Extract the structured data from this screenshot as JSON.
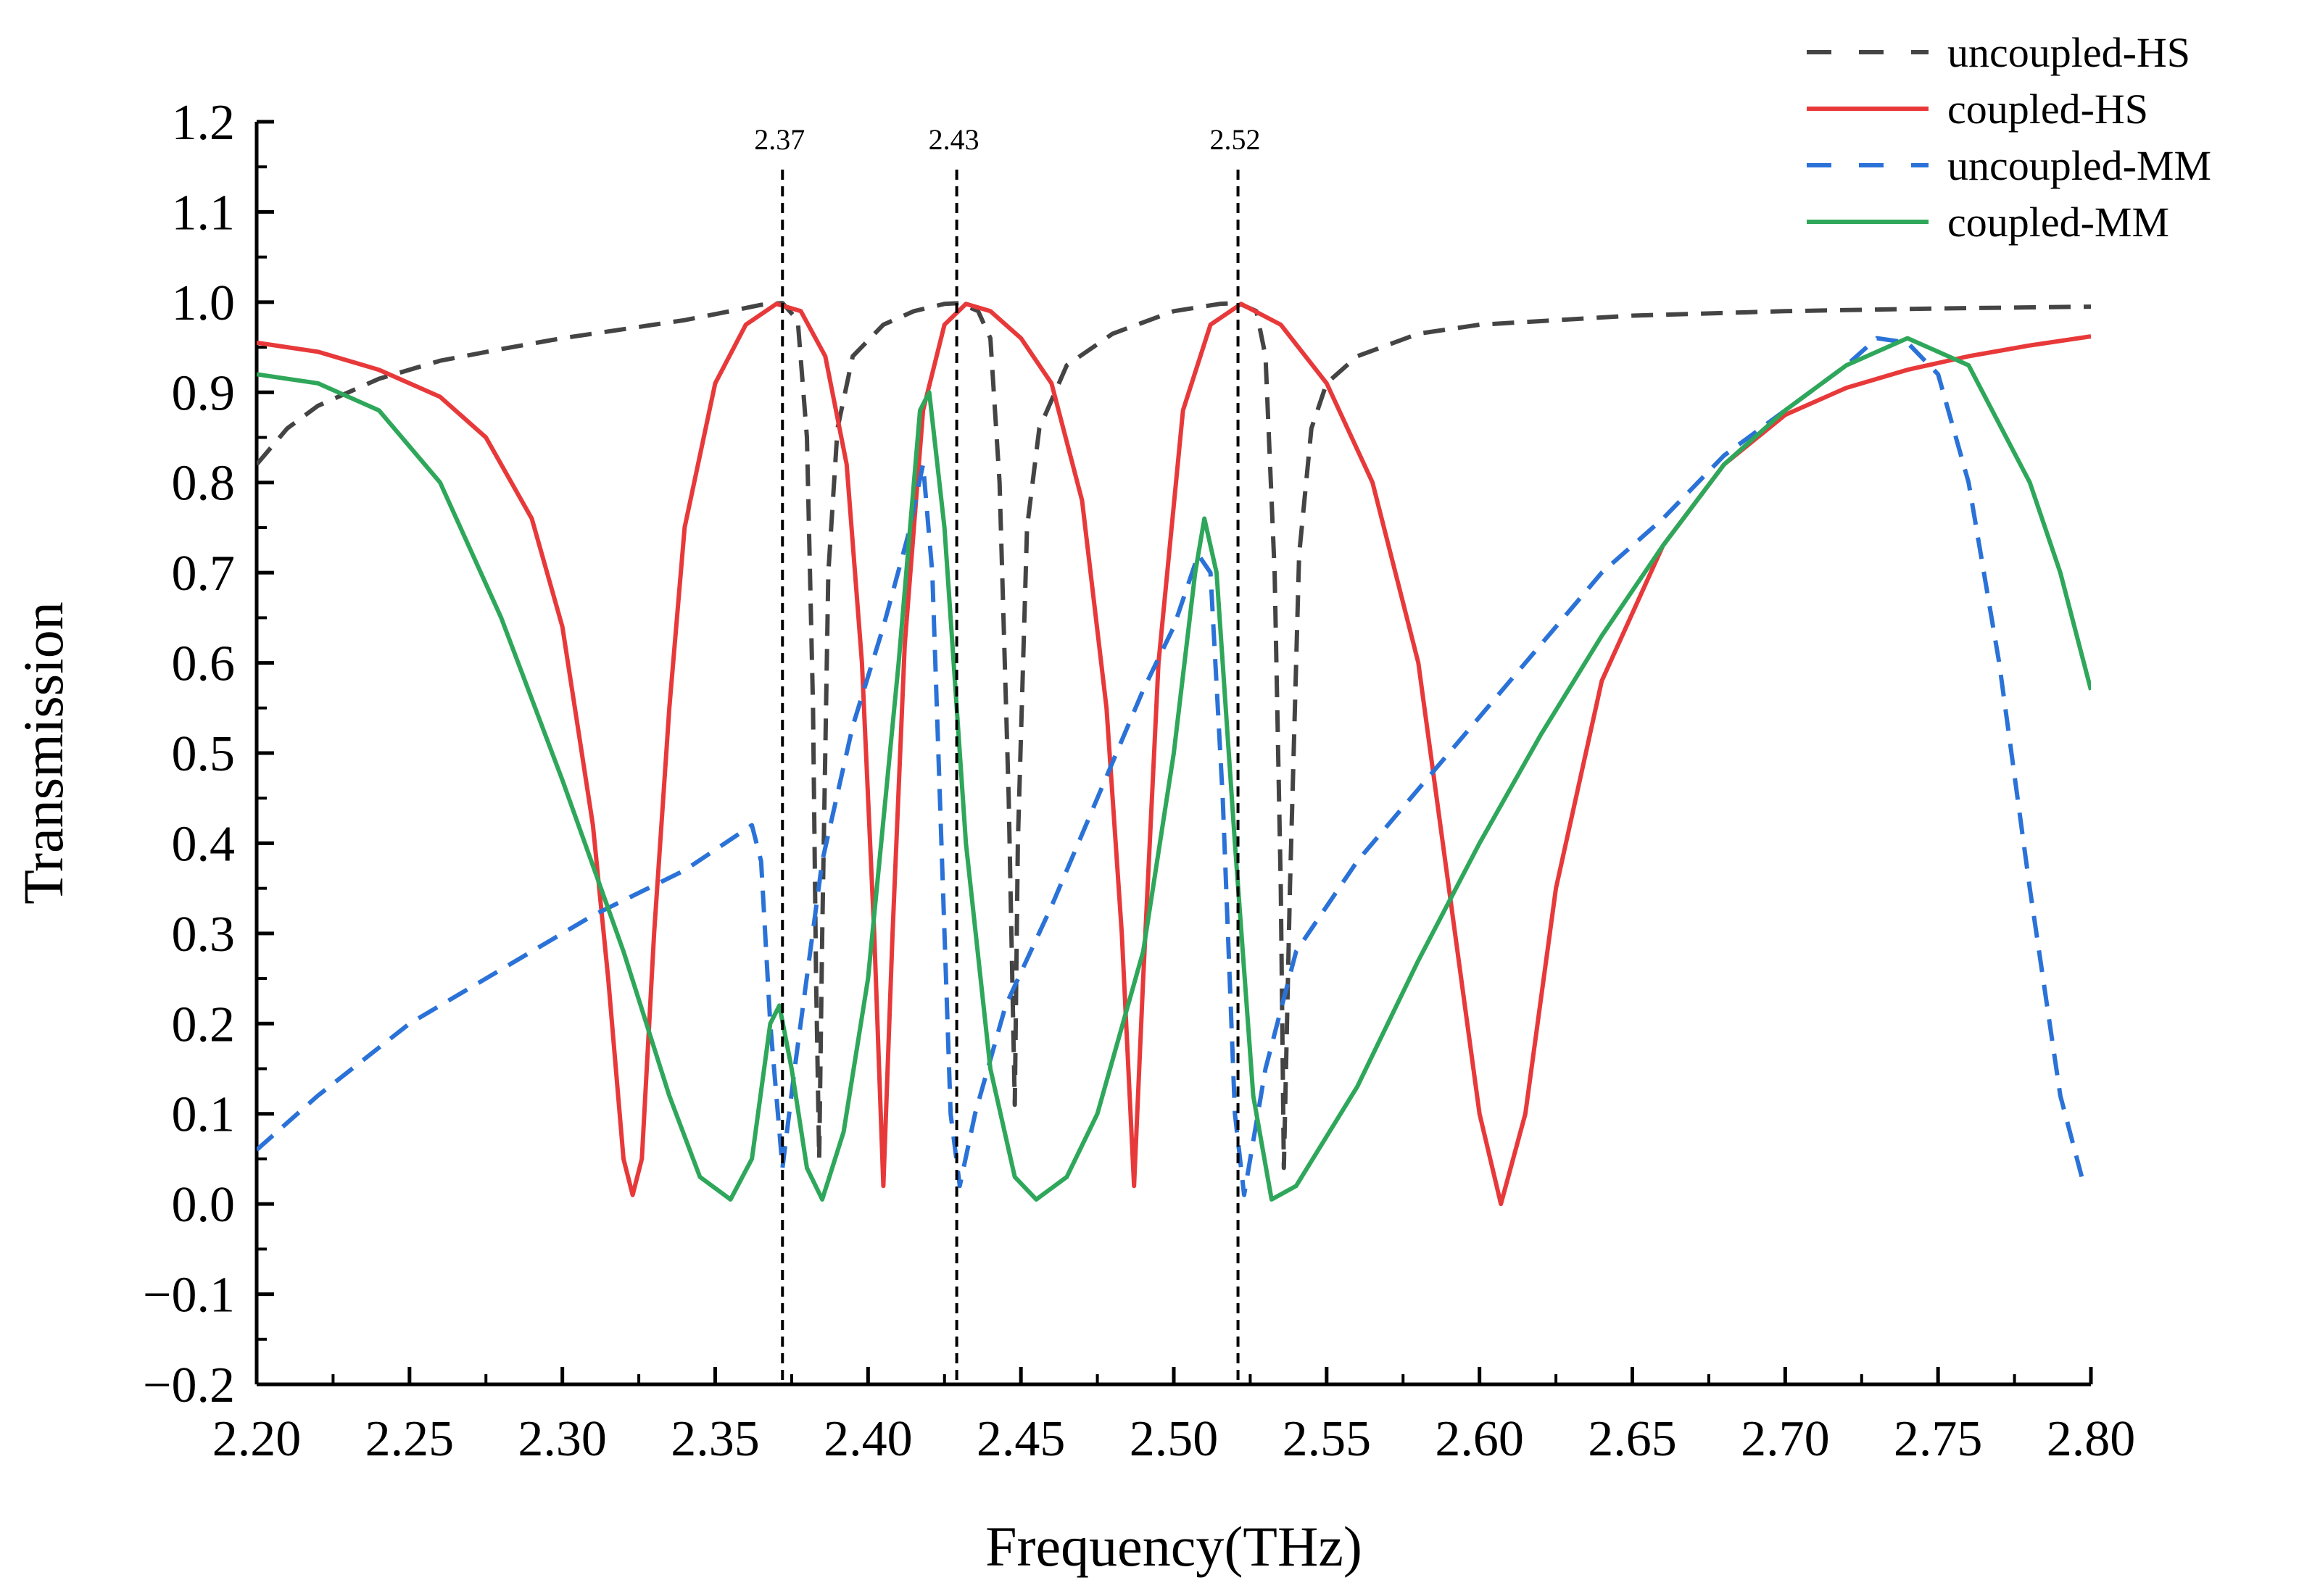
{
  "chart_data": {
    "type": "line",
    "title": "",
    "xlabel": "Frequency(THz)",
    "ylabel": "Transmission",
    "xlim": [
      2.2,
      2.8
    ],
    "ylim": [
      -0.2,
      1.2
    ],
    "x_ticks": [
      2.2,
      2.25,
      2.3,
      2.35,
      2.4,
      2.45,
      2.5,
      2.55,
      2.6,
      2.65,
      2.7,
      2.75,
      2.8
    ],
    "x_tick_labels": [
      "2.20",
      "2.25",
      "2.30",
      "2.35",
      "2.40",
      "2.45",
      "2.50",
      "2.55",
      "2.60",
      "2.65",
      "2.70",
      "2.75",
      "2.80"
    ],
    "y_ticks": [
      -0.2,
      -0.1,
      0.0,
      0.1,
      0.2,
      0.3,
      0.4,
      0.5,
      0.6,
      0.7,
      0.8,
      0.9,
      1.0,
      1.1,
      1.2
    ],
    "y_tick_labels": [
      "−0.2",
      "−0.1",
      "0.0",
      "0.1",
      "0.2",
      "0.3",
      "0.4",
      "0.5",
      "0.6",
      "0.7",
      "0.8",
      "0.9",
      "1.0",
      "1.1",
      "1.2"
    ],
    "grid": false,
    "legend_position": "top-right",
    "markers": [
      {
        "x": 2.372,
        "label": "2.37"
      },
      {
        "x": 2.429,
        "label": "2.43"
      },
      {
        "x": 2.521,
        "label": "2.52"
      }
    ],
    "series": [
      {
        "name": "uncoupled-HS",
        "color": "#444444",
        "dash": "dash",
        "points": [
          [
            2.2,
            0.82
          ],
          [
            2.21,
            0.86
          ],
          [
            2.22,
            0.885
          ],
          [
            2.24,
            0.915
          ],
          [
            2.26,
            0.935
          ],
          [
            2.28,
            0.948
          ],
          [
            2.3,
            0.96
          ],
          [
            2.32,
            0.97
          ],
          [
            2.34,
            0.98
          ],
          [
            2.355,
            0.99
          ],
          [
            2.365,
            0.997
          ],
          [
            2.372,
            0.999
          ],
          [
            2.377,
            0.98
          ],
          [
            2.38,
            0.85
          ],
          [
            2.382,
            0.55
          ],
          [
            2.383,
            0.25
          ],
          [
            2.384,
            0.05
          ],
          [
            2.385,
            0.3
          ],
          [
            2.387,
            0.7
          ],
          [
            2.39,
            0.86
          ],
          [
            2.395,
            0.94
          ],
          [
            2.405,
            0.975
          ],
          [
            2.415,
            0.99
          ],
          [
            2.425,
            0.998
          ],
          [
            2.43,
            0.999
          ],
          [
            2.436,
            0.99
          ],
          [
            2.44,
            0.96
          ],
          [
            2.443,
            0.8
          ],
          [
            2.446,
            0.45
          ],
          [
            2.448,
            0.11
          ],
          [
            2.449,
            0.4
          ],
          [
            2.452,
            0.75
          ],
          [
            2.456,
            0.86
          ],
          [
            2.465,
            0.93
          ],
          [
            2.48,
            0.965
          ],
          [
            2.5,
            0.99
          ],
          [
            2.515,
            0.998
          ],
          [
            2.521,
            0.999
          ],
          [
            2.527,
            0.99
          ],
          [
            2.53,
            0.94
          ],
          [
            2.533,
            0.7
          ],
          [
            2.535,
            0.35
          ],
          [
            2.536,
            0.04
          ],
          [
            2.538,
            0.35
          ],
          [
            2.541,
            0.72
          ],
          [
            2.545,
            0.86
          ],
          [
            2.55,
            0.91
          ],
          [
            2.56,
            0.94
          ],
          [
            2.58,
            0.965
          ],
          [
            2.6,
            0.975
          ],
          [
            2.65,
            0.985
          ],
          [
            2.7,
            0.99
          ],
          [
            2.75,
            0.993
          ],
          [
            2.8,
            0.995
          ]
        ]
      },
      {
        "name": "coupled-HS",
        "color": "#e8393a",
        "dash": "solid",
        "points": [
          [
            2.2,
            0.955
          ],
          [
            2.22,
            0.945
          ],
          [
            2.24,
            0.925
          ],
          [
            2.26,
            0.895
          ],
          [
            2.275,
            0.85
          ],
          [
            2.29,
            0.76
          ],
          [
            2.3,
            0.64
          ],
          [
            2.31,
            0.42
          ],
          [
            2.315,
            0.25
          ],
          [
            2.32,
            0.05
          ],
          [
            2.323,
            0.01
          ],
          [
            2.326,
            0.05
          ],
          [
            2.33,
            0.3
          ],
          [
            2.335,
            0.55
          ],
          [
            2.34,
            0.75
          ],
          [
            2.35,
            0.91
          ],
          [
            2.36,
            0.975
          ],
          [
            2.37,
            0.998
          ],
          [
            2.378,
            0.99
          ],
          [
            2.386,
            0.94
          ],
          [
            2.393,
            0.82
          ],
          [
            2.398,
            0.6
          ],
          [
            2.402,
            0.3
          ],
          [
            2.405,
            0.02
          ],
          [
            2.408,
            0.3
          ],
          [
            2.412,
            0.62
          ],
          [
            2.418,
            0.88
          ],
          [
            2.425,
            0.975
          ],
          [
            2.432,
            0.998
          ],
          [
            2.44,
            0.99
          ],
          [
            2.45,
            0.96
          ],
          [
            2.46,
            0.91
          ],
          [
            2.47,
            0.78
          ],
          [
            2.478,
            0.55
          ],
          [
            2.483,
            0.3
          ],
          [
            2.487,
            0.02
          ],
          [
            2.49,
            0.25
          ],
          [
            2.495,
            0.6
          ],
          [
            2.503,
            0.88
          ],
          [
            2.512,
            0.975
          ],
          [
            2.522,
            0.998
          ],
          [
            2.535,
            0.975
          ],
          [
            2.55,
            0.91
          ],
          [
            2.565,
            0.8
          ],
          [
            2.58,
            0.6
          ],
          [
            2.59,
            0.35
          ],
          [
            2.6,
            0.1
          ],
          [
            2.607,
            0.0
          ],
          [
            2.615,
            0.1
          ],
          [
            2.625,
            0.35
          ],
          [
            2.64,
            0.58
          ],
          [
            2.66,
            0.73
          ],
          [
            2.68,
            0.82
          ],
          [
            2.7,
            0.875
          ],
          [
            2.72,
            0.905
          ],
          [
            2.74,
            0.925
          ],
          [
            2.76,
            0.94
          ],
          [
            2.78,
            0.952
          ],
          [
            2.8,
            0.962
          ]
        ]
      },
      {
        "name": "uncoupled-MM",
        "color": "#2a72d8",
        "dash": "dash",
        "points": [
          [
            2.2,
            0.06
          ],
          [
            2.22,
            0.12
          ],
          [
            2.25,
            0.2
          ],
          [
            2.28,
            0.26
          ],
          [
            2.31,
            0.32
          ],
          [
            2.34,
            0.37
          ],
          [
            2.362,
            0.42
          ],
          [
            2.365,
            0.38
          ],
          [
            2.368,
            0.2
          ],
          [
            2.372,
            0.04
          ],
          [
            2.376,
            0.15
          ],
          [
            2.385,
            0.38
          ],
          [
            2.395,
            0.53
          ],
          [
            2.405,
            0.64
          ],
          [
            2.413,
            0.74
          ],
          [
            2.418,
            0.82
          ],
          [
            2.421,
            0.7
          ],
          [
            2.424,
            0.4
          ],
          [
            2.427,
            0.1
          ],
          [
            2.43,
            0.02
          ],
          [
            2.435,
            0.1
          ],
          [
            2.445,
            0.22
          ],
          [
            2.46,
            0.33
          ],
          [
            2.475,
            0.45
          ],
          [
            2.49,
            0.57
          ],
          [
            2.5,
            0.64
          ],
          [
            2.508,
            0.72
          ],
          [
            2.512,
            0.7
          ],
          [
            2.516,
            0.45
          ],
          [
            2.52,
            0.1
          ],
          [
            2.523,
            0.01
          ],
          [
            2.53,
            0.15
          ],
          [
            2.54,
            0.28
          ],
          [
            2.56,
            0.38
          ],
          [
            2.58,
            0.46
          ],
          [
            2.6,
            0.54
          ],
          [
            2.62,
            0.62
          ],
          [
            2.64,
            0.7
          ],
          [
            2.66,
            0.76
          ],
          [
            2.68,
            0.83
          ],
          [
            2.7,
            0.88
          ],
          [
            2.72,
            0.93
          ],
          [
            2.73,
            0.96
          ],
          [
            2.74,
            0.955
          ],
          [
            2.75,
            0.92
          ],
          [
            2.76,
            0.8
          ],
          [
            2.77,
            0.6
          ],
          [
            2.78,
            0.35
          ],
          [
            2.79,
            0.12
          ],
          [
            2.797,
            0.03
          ]
        ]
      },
      {
        "name": "coupled-MM",
        "color": "#2ea75a",
        "dash": "solid",
        "points": [
          [
            2.2,
            0.92
          ],
          [
            2.22,
            0.91
          ],
          [
            2.24,
            0.88
          ],
          [
            2.26,
            0.8
          ],
          [
            2.28,
            0.65
          ],
          [
            2.3,
            0.47
          ],
          [
            2.32,
            0.28
          ],
          [
            2.335,
            0.12
          ],
          [
            2.345,
            0.03
          ],
          [
            2.355,
            0.005
          ],
          [
            2.362,
            0.05
          ],
          [
            2.368,
            0.2
          ],
          [
            2.371,
            0.22
          ],
          [
            2.375,
            0.15
          ],
          [
            2.38,
            0.04
          ],
          [
            2.385,
            0.005
          ],
          [
            2.392,
            0.08
          ],
          [
            2.4,
            0.25
          ],
          [
            2.41,
            0.6
          ],
          [
            2.417,
            0.88
          ],
          [
            2.42,
            0.9
          ],
          [
            2.425,
            0.75
          ],
          [
            2.432,
            0.4
          ],
          [
            2.44,
            0.15
          ],
          [
            2.448,
            0.03
          ],
          [
            2.455,
            0.005
          ],
          [
            2.465,
            0.03
          ],
          [
            2.475,
            0.1
          ],
          [
            2.49,
            0.28
          ],
          [
            2.5,
            0.5
          ],
          [
            2.507,
            0.7
          ],
          [
            2.51,
            0.76
          ],
          [
            2.514,
            0.7
          ],
          [
            2.52,
            0.4
          ],
          [
            2.526,
            0.12
          ],
          [
            2.532,
            0.005
          ],
          [
            2.54,
            0.02
          ],
          [
            2.56,
            0.13
          ],
          [
            2.58,
            0.27
          ],
          [
            2.6,
            0.4
          ],
          [
            2.62,
            0.52
          ],
          [
            2.64,
            0.63
          ],
          [
            2.66,
            0.73
          ],
          [
            2.68,
            0.82
          ],
          [
            2.7,
            0.88
          ],
          [
            2.72,
            0.93
          ],
          [
            2.74,
            0.96
          ],
          [
            2.76,
            0.93
          ],
          [
            2.78,
            0.8
          ],
          [
            2.79,
            0.7
          ],
          [
            2.8,
            0.57
          ]
        ]
      }
    ]
  }
}
